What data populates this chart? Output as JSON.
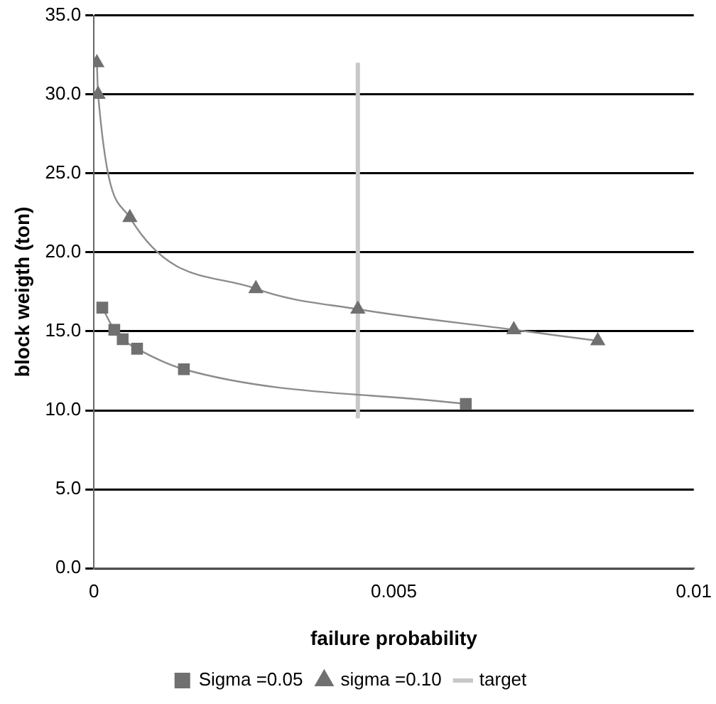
{
  "chart_data": {
    "type": "line",
    "xlabel": "failure probability",
    "ylabel": "block weigth (ton)",
    "xlim": [
      0,
      0.01
    ],
    "xticks": [
      0,
      0.005,
      0.01
    ],
    "ylim": [
      0,
      35
    ],
    "yticks": [
      {
        "value": 0,
        "label": "0.0"
      },
      {
        "value": 5,
        "label": "5.0"
      },
      {
        "value": 10,
        "label": "10.0"
      },
      {
        "value": 15,
        "label": "15.0"
      },
      {
        "value": 20,
        "label": "20.0"
      },
      {
        "value": 25,
        "label": "25.0"
      },
      {
        "value": 30,
        "label": "30.0"
      },
      {
        "value": 35,
        "label": "35.0"
      }
    ],
    "grid": "y",
    "legend": "bottom",
    "series": [
      {
        "name": "Sigma =0.05",
        "color": "#707070",
        "marker": "square",
        "x": [
          0.00014,
          0.00034,
          0.00048,
          0.00072,
          0.0015,
          0.0062
        ],
        "values": [
          16.5,
          15.1,
          14.5,
          13.9,
          12.6,
          10.4
        ]
      },
      {
        "name": "sigma =0.10",
        "color": "#707070",
        "marker": "triangle",
        "x": [
          5e-05,
          7e-05,
          0.0006,
          0.0027,
          0.0044,
          0.007,
          0.0084
        ],
        "values": [
          32.0,
          30.0,
          22.2,
          17.7,
          16.4,
          15.1,
          14.4
        ]
      },
      {
        "name": "target",
        "color": "#c8c8c8",
        "marker": "none",
        "x": [
          0.0044,
          0.0044
        ],
        "values": [
          9.5,
          32
        ]
      }
    ]
  }
}
